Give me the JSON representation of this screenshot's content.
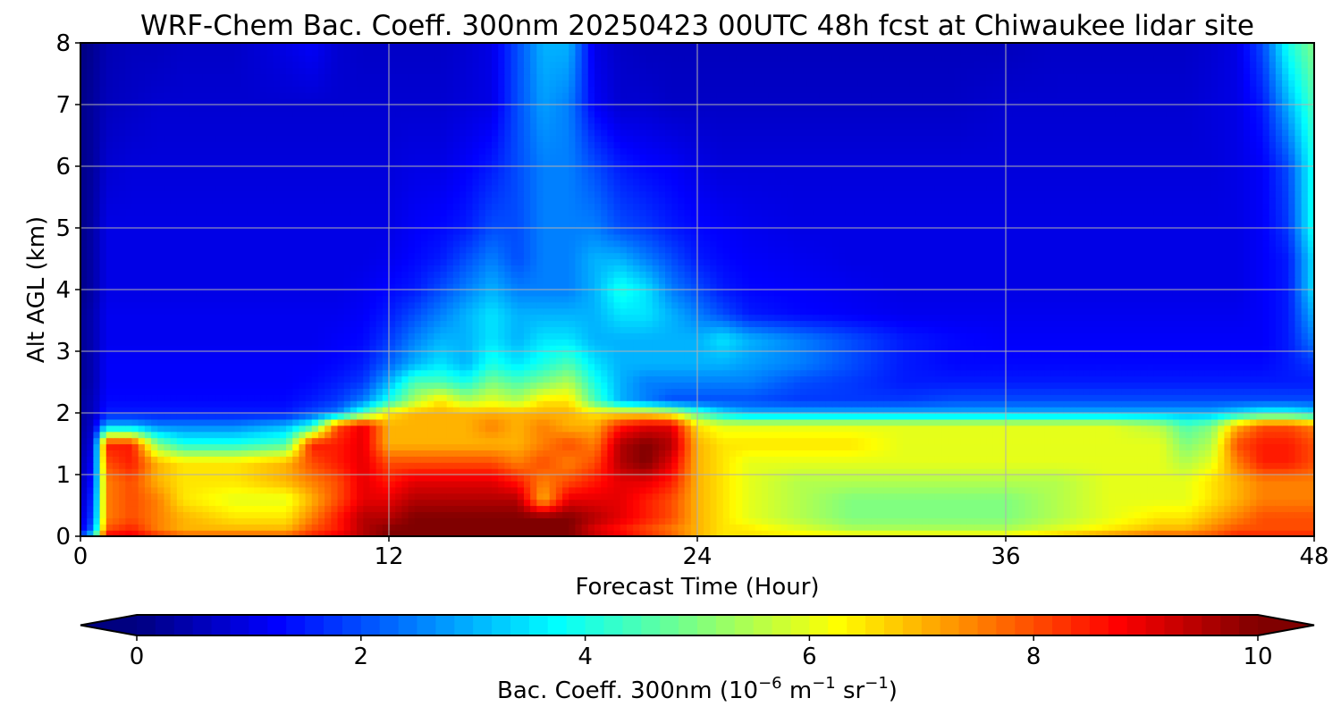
{
  "chart_data": {
    "type": "heatmap",
    "title": "WRF-Chem Bac. Coeff. 300nm  20250423 00UTC 48h fcst at Chiwaukee lidar site",
    "xlabel": "Forecast Time (Hour)",
    "ylabel": "Alt AGL (km)",
    "xlim": [
      0,
      48
    ],
    "ylim": [
      0,
      8
    ],
    "xticks": [
      0,
      12,
      24,
      36,
      48
    ],
    "yticks": [
      0,
      1,
      2,
      3,
      4,
      5,
      6,
      7,
      8
    ],
    "grid": true,
    "colormap": "jet",
    "colorbar": {
      "label_main": "Bac. Coeff. 300nm  (10",
      "label_exp1": "−6",
      "label_mid": " m",
      "label_exp2": "−1",
      "label_mid2": " sr",
      "label_exp3": "−1",
      "label_end": ")",
      "range": [
        0,
        10
      ],
      "ticks": [
        0,
        2,
        4,
        6,
        8,
        10
      ],
      "extend": "both",
      "orientation": "horizontal",
      "placement": "bottom"
    },
    "x_hours": [
      0,
      0.5,
      1,
      2,
      3,
      4,
      6,
      8,
      9,
      10,
      11,
      12,
      13,
      14,
      15,
      16,
      17,
      18,
      19,
      20,
      21,
      22,
      23,
      24,
      25,
      26,
      28,
      30,
      32,
      34,
      36,
      38,
      40,
      42,
      43,
      44,
      45,
      46,
      47,
      48
    ],
    "y_km": [
      0,
      0.1,
      0.3,
      0.6,
      0.9,
      1.2,
      1.5,
      1.8,
      2.0,
      2.2,
      2.5,
      2.8,
      3.2,
      3.6,
      4.0,
      4.5,
      5.0,
      6.0,
      7.0,
      8.0
    ],
    "values": [
      [
        2.0,
        4.0,
        9.0,
        9.0,
        8.5,
        8.0,
        8.0,
        8.0,
        8.5,
        9.0,
        9.5,
        10.0,
        10.0,
        10.0,
        10.0,
        10.0,
        10.0,
        10.0,
        10.0,
        9.5,
        9.0,
        8.5,
        8.0,
        7.0,
        6.5,
        6.5,
        6.5,
        6.5,
        6.5,
        6.5,
        6.5,
        7.0,
        7.5,
        8.0,
        8.0,
        8.0,
        8.5,
        8.5,
        8.5,
        8.5
      ],
      [
        1.0,
        2.5,
        8.0,
        8.5,
        7.5,
        7.0,
        7.0,
        7.0,
        8.0,
        8.5,
        9.5,
        10.0,
        10.0,
        10.0,
        10.0,
        10.0,
        10.0,
        10.0,
        10.0,
        9.0,
        8.5,
        8.0,
        7.5,
        7.0,
        6.5,
        6.5,
        6.0,
        5.5,
        5.5,
        5.5,
        5.5,
        6.0,
        6.5,
        7.0,
        7.0,
        7.5,
        8.0,
        8.0,
        8.0,
        8.0
      ],
      [
        0.8,
        2.0,
        7.5,
        8.0,
        7.5,
        7.0,
        6.5,
        6.5,
        7.5,
        8.5,
        9.5,
        9.5,
        10.0,
        10.0,
        10.0,
        10.0,
        10.0,
        10.0,
        10.0,
        9.5,
        9.0,
        8.5,
        8.0,
        7.0,
        6.5,
        6.0,
        5.5,
        5.0,
        5.0,
        5.0,
        5.0,
        5.5,
        6.0,
        6.5,
        6.5,
        7.0,
        7.5,
        8.0,
        8.0,
        8.0
      ],
      [
        0.6,
        1.8,
        7.5,
        8.0,
        7.5,
        6.5,
        6.0,
        6.0,
        7.0,
        8.0,
        9.0,
        9.0,
        9.5,
        9.5,
        9.5,
        9.5,
        9.5,
        7.0,
        9.0,
        9.0,
        9.0,
        8.5,
        8.0,
        7.0,
        6.5,
        6.0,
        5.5,
        5.0,
        5.0,
        5.0,
        5.0,
        5.5,
        6.0,
        6.0,
        6.0,
        6.5,
        7.0,
        7.5,
        7.5,
        7.5
      ],
      [
        0.5,
        1.5,
        7.5,
        8.0,
        7.0,
        6.5,
        6.5,
        7.0,
        7.5,
        8.0,
        9.0,
        8.5,
        9.0,
        9.0,
        9.0,
        9.0,
        8.5,
        7.5,
        8.0,
        8.5,
        9.0,
        9.0,
        8.5,
        7.0,
        6.5,
        6.0,
        5.5,
        5.5,
        5.5,
        5.5,
        5.5,
        5.5,
        6.0,
        6.0,
        6.0,
        6.5,
        7.0,
        7.5,
        7.5,
        7.5
      ],
      [
        0.5,
        1.3,
        8.0,
        8.5,
        7.0,
        6.5,
        6.5,
        7.0,
        8.0,
        8.5,
        9.0,
        8.0,
        8.0,
        8.0,
        8.0,
        8.0,
        7.5,
        8.0,
        7.5,
        8.0,
        9.5,
        10.0,
        9.0,
        7.0,
        6.5,
        6.0,
        6.0,
        6.0,
        6.0,
        6.0,
        6.0,
        6.0,
        6.0,
        6.0,
        5.5,
        6.0,
        7.5,
        8.5,
        8.5,
        8.0
      ],
      [
        0.4,
        1.0,
        8.5,
        8.5,
        5.0,
        4.0,
        4.0,
        4.5,
        8.5,
        8.5,
        9.0,
        7.0,
        7.0,
        7.0,
        7.0,
        7.0,
        7.0,
        7.5,
        8.0,
        7.5,
        9.5,
        10.0,
        9.5,
        7.0,
        6.5,
        6.5,
        6.5,
        6.5,
        6.0,
        6.0,
        6.0,
        6.0,
        6.0,
        6.0,
        5.0,
        5.5,
        8.0,
        8.5,
        8.5,
        8.0
      ],
      [
        0.3,
        0.8,
        3.0,
        3.0,
        2.5,
        2.5,
        2.5,
        3.0,
        4.0,
        8.0,
        9.0,
        7.0,
        7.0,
        7.0,
        7.0,
        7.5,
        7.0,
        7.5,
        7.0,
        7.0,
        8.5,
        9.0,
        9.0,
        6.5,
        6.0,
        6.0,
        6.0,
        6.0,
        6.0,
        6.0,
        6.0,
        6.0,
        6.0,
        5.5,
        4.5,
        5.0,
        7.0,
        8.0,
        8.0,
        7.5
      ],
      [
        0.3,
        0.6,
        1.5,
        1.5,
        1.5,
        1.5,
        1.5,
        1.5,
        2.0,
        2.5,
        4.5,
        6.5,
        7.0,
        7.0,
        7.0,
        7.0,
        7.0,
        7.0,
        7.0,
        6.5,
        6.5,
        6.5,
        6.0,
        4.5,
        3.5,
        3.0,
        3.0,
        3.0,
        3.0,
        3.0,
        3.0,
        3.0,
        3.0,
        3.0,
        3.0,
        3.0,
        3.5,
        4.0,
        4.0,
        3.5
      ],
      [
        0.3,
        0.6,
        1.3,
        1.3,
        1.3,
        1.3,
        1.3,
        1.3,
        1.5,
        1.8,
        2.5,
        4.0,
        5.5,
        6.5,
        5.5,
        6.0,
        5.5,
        6.5,
        6.5,
        4.5,
        3.0,
        2.5,
        2.0,
        2.0,
        2.0,
        2.0,
        1.8,
        1.8,
        1.8,
        2.0,
        2.0,
        2.0,
        2.0,
        2.0,
        2.0,
        2.0,
        2.0,
        2.0,
        2.0,
        2.0
      ],
      [
        0.2,
        0.5,
        1.2,
        1.2,
        1.2,
        1.2,
        1.2,
        1.2,
        1.3,
        1.5,
        1.8,
        3.0,
        4.5,
        4.5,
        4.0,
        5.0,
        4.5,
        5.0,
        5.5,
        4.0,
        3.0,
        2.5,
        2.5,
        2.5,
        2.5,
        2.5,
        2.0,
        1.8,
        1.5,
        1.5,
        1.5,
        1.5,
        1.5,
        1.5,
        1.5,
        1.5,
        1.5,
        1.5,
        1.5,
        1.5
      ],
      [
        0.2,
        0.5,
        1.2,
        1.2,
        1.2,
        1.2,
        1.2,
        1.2,
        1.2,
        1.3,
        1.5,
        2.2,
        3.0,
        3.5,
        3.0,
        4.0,
        3.5,
        4.0,
        4.5,
        3.5,
        3.0,
        3.0,
        3.0,
        3.0,
        3.0,
        2.8,
        2.5,
        2.0,
        1.5,
        1.3,
        1.3,
        1.3,
        1.3,
        1.3,
        1.3,
        1.3,
        1.3,
        1.3,
        1.5,
        1.8
      ],
      [
        0.2,
        0.5,
        1.1,
        1.1,
        1.1,
        1.1,
        1.1,
        1.1,
        1.1,
        1.2,
        1.3,
        1.8,
        2.5,
        3.0,
        3.0,
        3.5,
        3.0,
        3.5,
        3.5,
        3.0,
        3.0,
        3.0,
        3.0,
        3.0,
        3.5,
        3.0,
        2.5,
        2.0,
        1.5,
        1.3,
        1.2,
        1.2,
        1.2,
        1.2,
        1.2,
        1.2,
        1.2,
        1.2,
        1.5,
        2.5
      ],
      [
        0.2,
        0.5,
        1.1,
        1.1,
        1.1,
        1.1,
        1.1,
        1.1,
        1.1,
        1.1,
        1.2,
        1.5,
        2.0,
        2.5,
        3.0,
        3.5,
        3.0,
        3.0,
        3.0,
        3.0,
        3.5,
        3.5,
        3.0,
        2.5,
        2.0,
        1.5,
        1.3,
        1.2,
        1.1,
        1.1,
        1.1,
        1.1,
        1.1,
        1.1,
        1.1,
        1.1,
        1.1,
        1.2,
        1.5,
        3.0
      ],
      [
        0.1,
        0.4,
        1.0,
        1.0,
        1.0,
        1.0,
        1.0,
        1.0,
        1.0,
        1.0,
        1.1,
        1.3,
        1.5,
        2.0,
        2.5,
        3.0,
        2.5,
        2.5,
        2.5,
        3.0,
        4.0,
        3.5,
        2.5,
        2.0,
        1.5,
        1.3,
        1.2,
        1.1,
        1.0,
        1.0,
        1.0,
        1.0,
        1.0,
        1.0,
        1.0,
        1.0,
        1.0,
        1.2,
        1.5,
        3.5
      ],
      [
        0.1,
        0.4,
        1.0,
        1.0,
        1.0,
        1.0,
        1.0,
        1.0,
        1.0,
        1.0,
        1.0,
        1.1,
        1.3,
        1.5,
        2.0,
        2.5,
        2.0,
        2.5,
        2.5,
        3.0,
        3.0,
        2.5,
        2.0,
        1.5,
        1.3,
        1.2,
        1.1,
        1.0,
        1.0,
        1.0,
        1.0,
        1.0,
        1.0,
        1.0,
        1.0,
        1.0,
        1.0,
        1.2,
        1.5,
        3.5
      ],
      [
        0.1,
        0.4,
        1.0,
        1.0,
        1.0,
        1.0,
        1.0,
        1.0,
        1.0,
        1.0,
        1.0,
        1.0,
        1.2,
        1.3,
        1.5,
        2.0,
        2.0,
        2.5,
        2.5,
        2.5,
        2.0,
        1.8,
        1.5,
        1.3,
        1.2,
        1.1,
        1.0,
        1.0,
        1.0,
        1.0,
        1.0,
        1.0,
        1.0,
        1.0,
        1.0,
        1.0,
        1.0,
        1.2,
        1.8,
        4.0
      ],
      [
        0.1,
        0.3,
        0.8,
        0.9,
        0.9,
        0.9,
        0.9,
        0.9,
        0.9,
        0.9,
        0.9,
        0.9,
        1.0,
        1.0,
        1.2,
        1.5,
        2.0,
        2.5,
        2.5,
        2.0,
        1.5,
        1.3,
        1.2,
        1.0,
        0.9,
        0.9,
        0.9,
        0.9,
        0.9,
        0.9,
        0.9,
        0.9,
        0.9,
        0.9,
        0.9,
        0.9,
        1.0,
        1.2,
        2.0,
        4.0
      ],
      [
        0.1,
        0.3,
        0.6,
        0.7,
        0.8,
        0.8,
        0.8,
        0.8,
        0.8,
        0.8,
        0.8,
        0.8,
        0.8,
        0.8,
        0.9,
        1.0,
        2.0,
        2.8,
        2.5,
        1.2,
        0.8,
        0.8,
        0.7,
        0.7,
        0.7,
        0.7,
        0.7,
        0.7,
        0.7,
        0.7,
        0.8,
        0.8,
        0.8,
        0.8,
        0.8,
        0.9,
        1.0,
        1.5,
        3.0,
        4.5
      ],
      [
        0.0,
        0.2,
        0.5,
        0.6,
        0.6,
        0.7,
        0.7,
        1.0,
        1.2,
        0.8,
        0.7,
        0.7,
        0.7,
        0.7,
        0.8,
        1.0,
        2.0,
        3.0,
        3.0,
        1.0,
        0.7,
        0.6,
        0.6,
        0.6,
        0.6,
        0.6,
        0.6,
        0.6,
        0.6,
        0.6,
        0.6,
        0.7,
        0.7,
        0.7,
        0.7,
        0.8,
        1.0,
        2.0,
        4.0,
        5.0
      ]
    ]
  }
}
